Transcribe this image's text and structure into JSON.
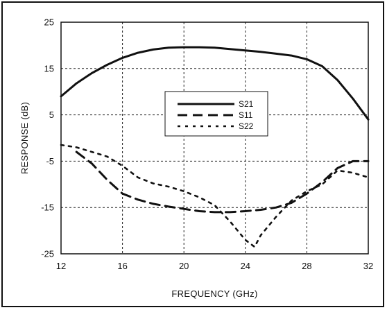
{
  "chart_data": {
    "type": "line",
    "title": "",
    "xlabel": "FREQUENCY (GHz)",
    "ylabel": "RESPONSE (dB)",
    "xlim": [
      12,
      32
    ],
    "ylim": [
      -25,
      25
    ],
    "x_ticks": [
      "12",
      "16",
      "20",
      "24",
      "28",
      "32"
    ],
    "y_ticks": [
      "25",
      "15",
      "5",
      "-5",
      "-15",
      "-25"
    ],
    "grid": true,
    "legend": "center",
    "series": [
      {
        "name": "S21",
        "style": "solid",
        "x": [
          12,
          13,
          14,
          15,
          16,
          17,
          18,
          19,
          20,
          21,
          22,
          23,
          24,
          25,
          26,
          27,
          28,
          29,
          30,
          31,
          32
        ],
        "y": [
          9,
          11.8,
          14,
          15.8,
          17.3,
          18.4,
          19.1,
          19.5,
          19.6,
          19.6,
          19.5,
          19.2,
          18.9,
          18.6,
          18.2,
          17.8,
          17,
          15.5,
          12.5,
          8.5,
          4
        ]
      },
      {
        "name": "S11",
        "style": "dashed",
        "x": [
          13,
          14,
          15,
          16,
          17,
          18,
          19,
          20,
          21,
          22,
          23,
          24,
          25,
          26,
          27,
          28,
          29,
          30,
          31,
          32
        ],
        "y": [
          -3,
          -5.5,
          -9,
          -12,
          -13.3,
          -14.2,
          -14.8,
          -15.3,
          -15.8,
          -16,
          -16,
          -15.8,
          -15.5,
          -15,
          -14,
          -12,
          -9.5,
          -6.5,
          -5,
          -5
        ]
      },
      {
        "name": "S22",
        "style": "dotted",
        "x": [
          12,
          13,
          14,
          15,
          16,
          17,
          18,
          19,
          20,
          21,
          22,
          23,
          24,
          24.6,
          25,
          26,
          27,
          28,
          29,
          30,
          31,
          32
        ],
        "y": [
          -1.5,
          -2,
          -3,
          -4,
          -6,
          -8.5,
          -9.8,
          -10.5,
          -11.5,
          -12.8,
          -14.5,
          -18,
          -22,
          -23.5,
          -21,
          -17,
          -13.5,
          -11.5,
          -10,
          -7,
          -7.5,
          -8.5
        ]
      }
    ]
  }
}
